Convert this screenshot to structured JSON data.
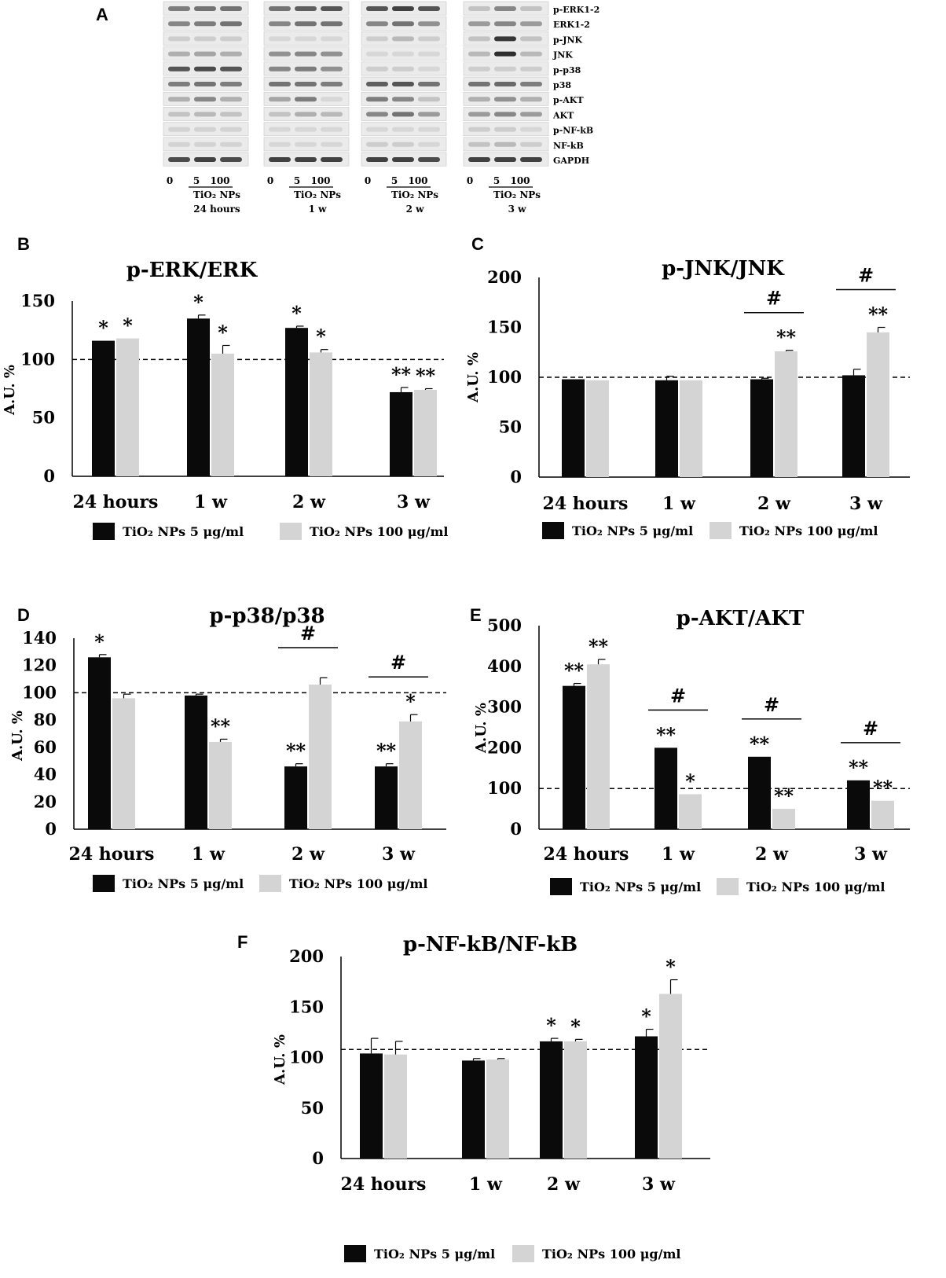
{
  "panel_a": {
    "letter": "A",
    "row_labels": [
      "p-ERK1-2",
      "ERK1-2",
      "p-JNK",
      "JNK",
      "p-p38",
      "p38",
      "p-AKT",
      "AKT",
      "p-NF-kB",
      "NF-kB",
      "GAPDH"
    ],
    "groups": [
      {
        "doses": [
          "0",
          "5",
          "100"
        ],
        "agent": "TiO₂ NPs",
        "time": "24 hours"
      },
      {
        "doses": [
          "0",
          "5",
          "100"
        ],
        "agent": "TiO₂ NPs",
        "time": "1 w"
      },
      {
        "doses": [
          "0",
          "5",
          "100"
        ],
        "agent": "TiO₂ NPs",
        "time": "2 w"
      },
      {
        "doses": [
          "0",
          "5",
          "100"
        ],
        "agent": "TiO₂ NPs",
        "time": "3 w"
      }
    ]
  },
  "legend": {
    "series1": "TiO₂ NPs 5 μg/ml",
    "series2": "TiO₂ NPs 100 μg/ml"
  },
  "colors": {
    "series1": "#0a0a0a",
    "series2": "#d4d4d4"
  },
  "chart_data": [
    {
      "letter": "B",
      "type": "bar",
      "title": "p-ERK/ERK",
      "ylabel": "A.U. %",
      "categories": [
        "24 hours",
        "1 w",
        "2 w",
        "3 w"
      ],
      "ylim": [
        0,
        150
      ],
      "yticks": [
        "0",
        "50",
        "100",
        "150"
      ],
      "reference_line": 100,
      "series": [
        {
          "name": "TiO₂ NPs 5 μg/ml",
          "values": [
            116,
            135,
            127,
            72
          ],
          "errors": [
            0,
            3,
            1.5,
            4
          ]
        },
        {
          "name": "TiO₂ NPs 100 μg/ml",
          "values": [
            118,
            105,
            106,
            74
          ],
          "errors": [
            0,
            7,
            2.5,
            1
          ]
        }
      ],
      "annotations": [
        {
          "category": 0,
          "series": 0,
          "text": "*"
        },
        {
          "category": 0,
          "series": 1,
          "text": "*"
        },
        {
          "category": 1,
          "series": 0,
          "text": "*"
        },
        {
          "category": 1,
          "series": 1,
          "text": "*"
        },
        {
          "category": 2,
          "series": 0,
          "text": "*"
        },
        {
          "category": 2,
          "series": 1,
          "text": "*"
        },
        {
          "category": 3,
          "series": 0,
          "text": "**"
        },
        {
          "category": 3,
          "series": 1,
          "text": "**"
        }
      ],
      "hash_groups": []
    },
    {
      "letter": "C",
      "type": "bar",
      "title": "p-JNK/JNK",
      "ylabel": "A.U. %",
      "categories": [
        "24 hours",
        "1 w",
        "2 w",
        "3 w"
      ],
      "ylim": [
        0,
        200
      ],
      "yticks": [
        "0",
        "50",
        "100",
        "150",
        "200"
      ],
      "reference_line": 100,
      "series": [
        {
          "name": "TiO₂ NPs 5 μg/ml",
          "values": [
            98,
            97,
            98,
            102
          ],
          "errors": [
            0,
            4,
            1,
            6
          ]
        },
        {
          "name": "TiO₂ NPs 100 μg/ml",
          "values": [
            97,
            97,
            126,
            145
          ],
          "errors": [
            0,
            0,
            1,
            5
          ]
        }
      ],
      "annotations": [
        {
          "category": 2,
          "series": 1,
          "text": "**"
        },
        {
          "category": 3,
          "series": 1,
          "text": "**"
        }
      ],
      "hash_groups": [
        {
          "category": 2,
          "text": "#"
        },
        {
          "category": 3,
          "text": "#"
        }
      ]
    },
    {
      "letter": "D",
      "type": "bar",
      "title": "p-p38/p38",
      "ylabel": "A.U. %",
      "categories": [
        "24 hours",
        "1 w",
        "2 w",
        "3 w"
      ],
      "ylim": [
        0,
        140
      ],
      "yticks": [
        "0",
        "20",
        "40",
        "60",
        "80",
        "100",
        "120",
        "140"
      ],
      "reference_line": 100,
      "series": [
        {
          "name": "TiO₂ NPs 5 μg/ml",
          "values": [
            126,
            98,
            46,
            46
          ],
          "errors": [
            2,
            1,
            2,
            2
          ]
        },
        {
          "name": "TiO₂ NPs 100 μg/ml",
          "values": [
            96,
            64,
            106,
            79
          ],
          "errors": [
            3,
            2,
            5,
            5
          ]
        }
      ],
      "annotations": [
        {
          "category": 0,
          "series": 0,
          "text": "*"
        },
        {
          "category": 1,
          "series": 1,
          "text": "**"
        },
        {
          "category": 2,
          "series": 0,
          "text": "**"
        },
        {
          "category": 3,
          "series": 0,
          "text": "**"
        },
        {
          "category": 3,
          "series": 1,
          "text": "*"
        }
      ],
      "hash_groups": [
        {
          "category": 2,
          "text": "#"
        },
        {
          "category": 3,
          "text": "#"
        }
      ]
    },
    {
      "letter": "E",
      "type": "bar",
      "title": "p-AKT/AKT",
      "ylabel": "A.U. %",
      "categories": [
        "24 hours",
        "1 w",
        "2 w",
        "3 w"
      ],
      "ylim": [
        0,
        500
      ],
      "yticks": [
        "0",
        "100",
        "200",
        "300",
        "400",
        "500"
      ],
      "reference_line": 100,
      "series": [
        {
          "name": "TiO₂ NPs 5 μg/ml",
          "values": [
            352,
            200,
            178,
            120
          ],
          "errors": [
            6,
            0,
            0,
            0
          ]
        },
        {
          "name": "TiO₂ NPs 100 μg/ml",
          "values": [
            405,
            86,
            50,
            70
          ],
          "errors": [
            12,
            0,
            0,
            0
          ]
        }
      ],
      "annotations": [
        {
          "category": 0,
          "series": 0,
          "text": "**"
        },
        {
          "category": 0,
          "series": 1,
          "text": "**"
        },
        {
          "category": 1,
          "series": 0,
          "text": "**"
        },
        {
          "category": 1,
          "series": 1,
          "text": "*"
        },
        {
          "category": 2,
          "series": 0,
          "text": "**"
        },
        {
          "category": 2,
          "series": 1,
          "text": "**"
        },
        {
          "category": 3,
          "series": 0,
          "text": "**"
        },
        {
          "category": 3,
          "series": 1,
          "text": "**"
        }
      ],
      "hash_groups": [
        {
          "category": 1,
          "text": "#"
        },
        {
          "category": 2,
          "text": "#"
        },
        {
          "category": 3,
          "text": "#"
        }
      ]
    },
    {
      "letter": "F",
      "type": "bar",
      "title": "p-NF-kB/NF-kB",
      "ylabel": "A.U. %",
      "categories": [
        "24 hours",
        "1 w",
        "2 w",
        "3 w"
      ],
      "ylim": [
        0,
        200
      ],
      "yticks": [
        "0",
        "50",
        "100",
        "150",
        "200"
      ],
      "reference_line": 108,
      "series": [
        {
          "name": "TiO₂ NPs 5 μg/ml",
          "values": [
            104,
            97,
            116,
            121
          ],
          "errors": [
            15,
            2,
            3,
            7
          ]
        },
        {
          "name": "TiO₂ NPs 100 μg/ml",
          "values": [
            103,
            98,
            116,
            163
          ],
          "errors": [
            13,
            1,
            2,
            14
          ]
        }
      ],
      "annotations": [
        {
          "category": 2,
          "series": 0,
          "text": "*"
        },
        {
          "category": 2,
          "series": 1,
          "text": "*"
        },
        {
          "category": 3,
          "series": 0,
          "text": "*"
        },
        {
          "category": 3,
          "series": 1,
          "text": "*"
        }
      ],
      "hash_groups": []
    }
  ]
}
